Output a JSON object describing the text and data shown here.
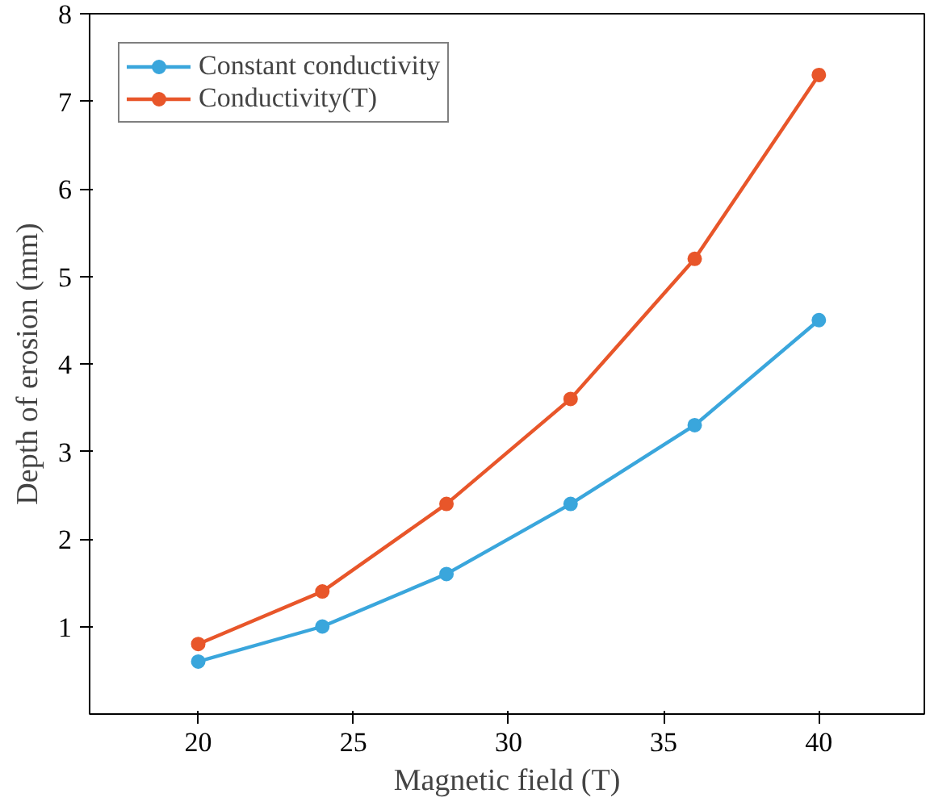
{
  "chart_data": {
    "type": "line",
    "xlabel": "Magnetic field (T)",
    "ylabel": "Depth of erosion (mm)",
    "x": [
      20,
      24,
      28,
      32,
      36,
      40
    ],
    "series": [
      {
        "name": "Constant conductivity",
        "color": "#3aa6dc",
        "values": [
          0.6,
          1.0,
          1.6,
          2.4,
          3.3,
          4.5
        ]
      },
      {
        "name": "Conductivity(T)",
        "color": "#e8562a",
        "values": [
          0.8,
          1.4,
          2.4,
          3.6,
          5.2,
          7.3
        ]
      }
    ],
    "xlim": [
      16.5,
      43.4
    ],
    "ylim": [
      0,
      8
    ],
    "xticks": [
      20,
      25,
      30,
      35,
      40
    ],
    "yticks": [
      1,
      2,
      3,
      4,
      5,
      6,
      7,
      8
    ],
    "grid": false,
    "legend": "top left",
    "marker": "circle",
    "line_style": "solid"
  }
}
